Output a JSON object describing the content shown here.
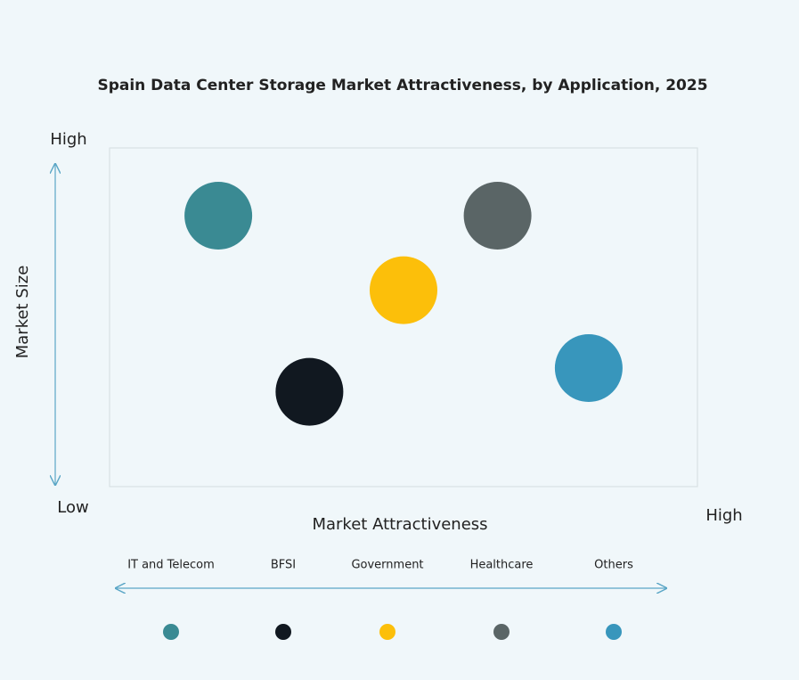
{
  "chart_data": {
    "type": "scatter",
    "title": "Spain Data Center Storage Market Attractiveness,  by Application, 2025",
    "x_label": "Market Attractiveness",
    "y_label": "Market Size",
    "y_high_label": "High",
    "low_label": "Low",
    "x_high_label": "High",
    "xlim": [
      0,
      100
    ],
    "ylim": [
      0,
      100
    ],
    "series": [
      {
        "name": "IT and Telecom",
        "color": "#3a8a93",
        "x": [
          18.5
        ],
        "values": [
          80
        ]
      },
      {
        "name": "BFSI",
        "color": "#111820",
        "x": [
          34
        ],
        "values": [
          28
        ]
      },
      {
        "name": "Government",
        "color": "#fcbf0a",
        "x": [
          50
        ],
        "values": [
          58
        ]
      },
      {
        "name": "Healthcare",
        "color": "#5a6566",
        "x": [
          66
        ],
        "values": [
          80
        ]
      },
      {
        "name": "Others",
        "color": "#3896bc",
        "x": [
          81.5
        ],
        "values": [
          35
        ]
      }
    ]
  }
}
